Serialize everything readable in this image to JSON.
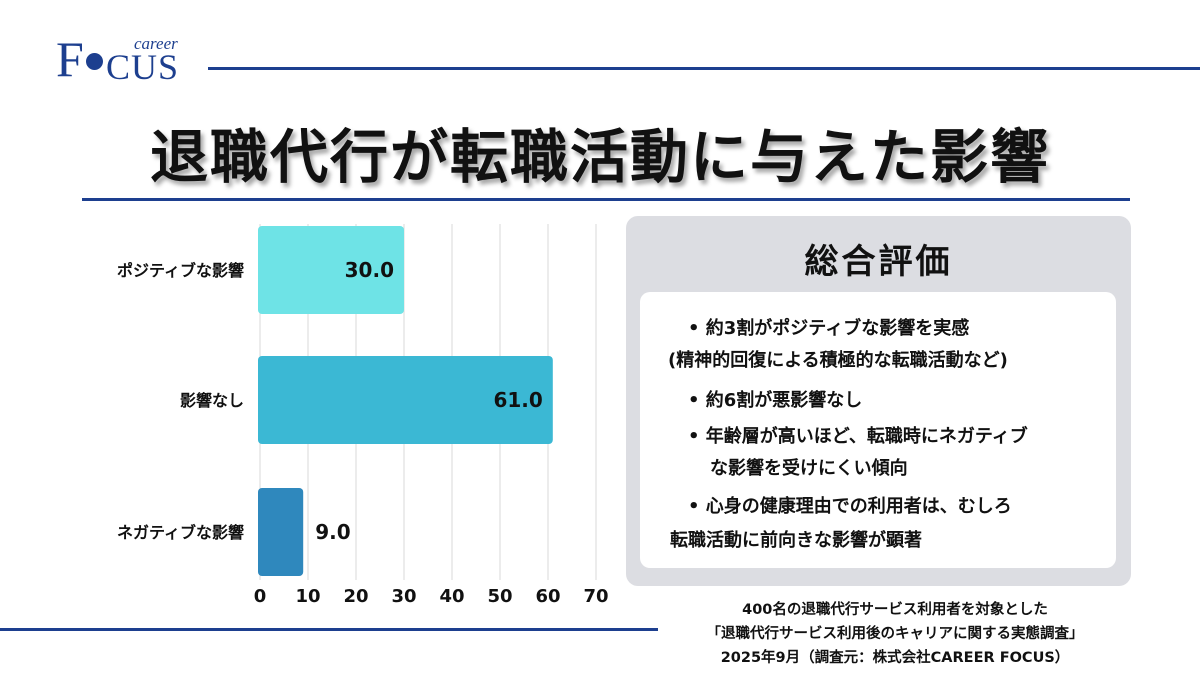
{
  "logo": {
    "f": "F",
    "cus": "CUS",
    "career": "career"
  },
  "title": "退職代行が転職活動に与えた影響",
  "chart_data": {
    "type": "bar",
    "orientation": "horizontal",
    "categories": [
      "ポジティブな影響",
      "影響なし",
      "ネガティブな影響"
    ],
    "values": [
      30.0,
      61.0,
      9.0
    ],
    "value_labels": [
      "30.0",
      "61.0",
      "9.0"
    ],
    "xlim": [
      0,
      70
    ],
    "xticks": [
      0,
      10,
      20,
      30,
      40,
      50,
      60,
      70
    ],
    "grid": true,
    "colors": [
      "#6ee3e6",
      "#3bb8d4",
      "#2f88bd"
    ]
  },
  "summary": {
    "title": "総合評価",
    "lines": [
      "• 約3割がポジティブな影響を実感",
      "(精神的回復による積極的な転職活動など)",
      "• 約6割が悪影響なし",
      "• 年齢層が高いほど、転職時にネガティブ",
      "な影響を受けにくい傾向",
      "• 心身の健康理由での利用者は、むしろ",
      "転職活動に前向きな影響が顕著"
    ]
  },
  "footer": {
    "line1": "400名の退職代行サービス利用者を対象とした",
    "line2": "「退職代行サービス利用後のキャリアに関する実態調査」",
    "line3": "2025年9月（調査元：株式会社CAREER FOCUS）"
  }
}
